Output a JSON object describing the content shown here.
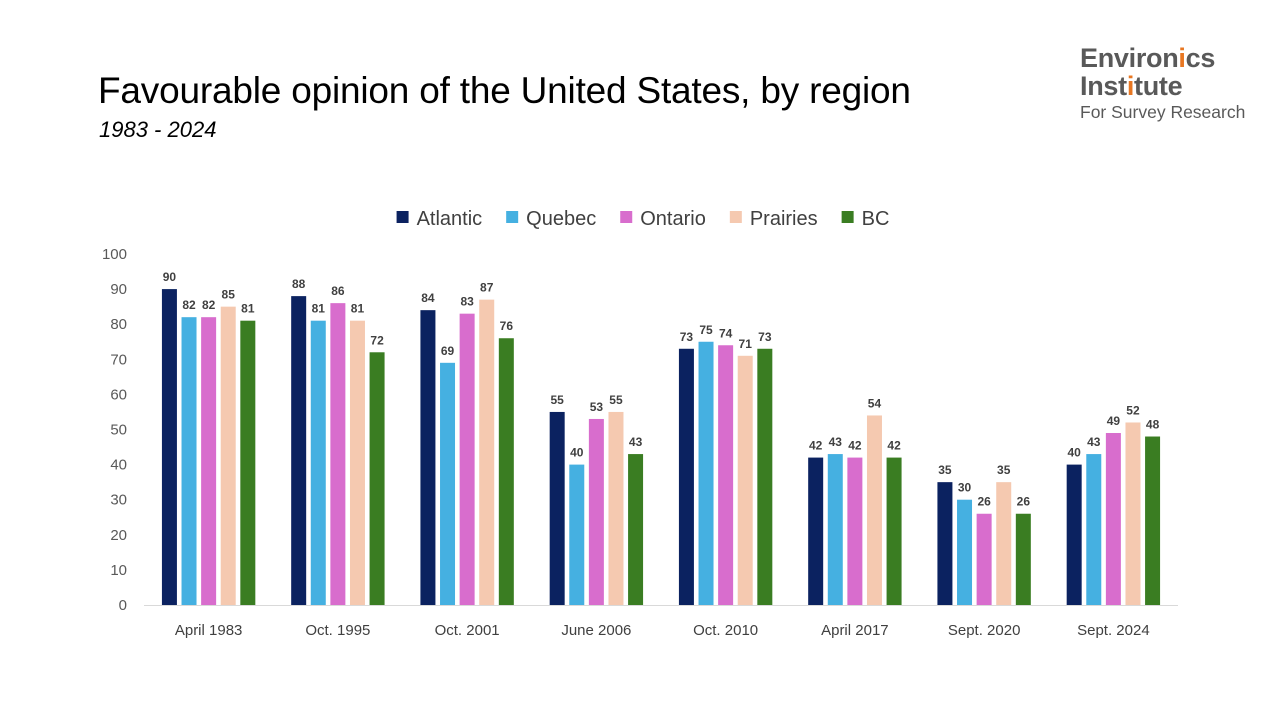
{
  "header": {
    "title": "Favourable opinion of the United States, by region",
    "subtitle": "1983 - 2024"
  },
  "logo": {
    "line1_pre": "Environ",
    "line1_accent": "i",
    "line1_post": "cs",
    "line2_pre": "Inst",
    "line2_accent": "i",
    "line2_post": "tute",
    "line3": "For Survey Research",
    "text_color": "#595959",
    "accent_color": "#e87722"
  },
  "chart_data": {
    "type": "bar",
    "title": "",
    "xlabel": "",
    "ylabel": "",
    "ylim": [
      0,
      100
    ],
    "yticks": [
      0,
      10,
      20,
      30,
      40,
      50,
      60,
      70,
      80,
      90,
      100
    ],
    "grid": false,
    "legend_position": "top-center",
    "categories": [
      "April 1983",
      "Oct. 1995",
      "Oct. 2001",
      "June 2006",
      "Oct. 2010",
      "April 2017",
      "Sept. 2020",
      "Sept. 2024"
    ],
    "series": [
      {
        "name": "Atlantic",
        "color": "#0b2260",
        "values": [
          90,
          88,
          84,
          55,
          73,
          42,
          35,
          40
        ]
      },
      {
        "name": "Quebec",
        "color": "#45b0e1",
        "values": [
          82,
          81,
          69,
          40,
          75,
          43,
          30,
          43
        ]
      },
      {
        "name": "Ontario",
        "color": "#d86dcd",
        "values": [
          82,
          86,
          83,
          53,
          74,
          42,
          26,
          49
        ]
      },
      {
        "name": "Prairies",
        "color": "#f5c9b0",
        "values": [
          85,
          81,
          87,
          55,
          71,
          54,
          35,
          52
        ]
      },
      {
        "name": "BC",
        "color": "#3a7d22",
        "values": [
          81,
          72,
          76,
          43,
          73,
          42,
          26,
          48
        ]
      }
    ]
  }
}
